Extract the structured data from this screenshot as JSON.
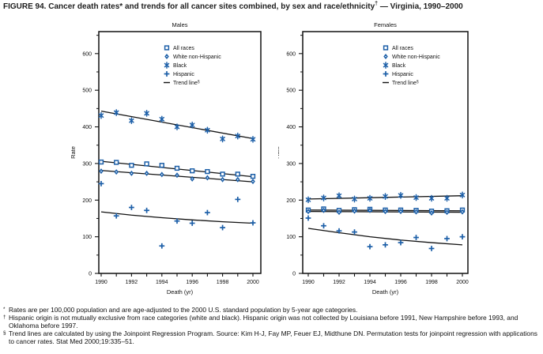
{
  "figure_title": {
    "prefix": "FIGURE 94. Cancer death rates* and trends for all cancer sites combined, by sex and race/ethnicity",
    "superscript": "†",
    "suffix": " — Virginia, 1990–2000"
  },
  "colors": {
    "marker_blue": "#1c5fa8",
    "trend_black": "#111111",
    "axis_black": "#111111"
  },
  "legend": {
    "entries": [
      {
        "label": "All races",
        "marker": "square"
      },
      {
        "label": "White non-Hispanic",
        "marker": "diamond"
      },
      {
        "label": "Black",
        "marker": "asterisk"
      },
      {
        "label": "Hispanic",
        "marker": "plus"
      },
      {
        "label": "Trend line",
        "marker": "dash",
        "superscript": "§"
      }
    ]
  },
  "chart_data": [
    {
      "type": "scatter",
      "title": "Males",
      "xlabel": "Death (yr)",
      "ylabel": "Rate",
      "x": [
        1990,
        1991,
        1992,
        1993,
        1994,
        1995,
        1996,
        1997,
        1998,
        1999,
        2000
      ],
      "xtick_labels": [
        1990,
        1992,
        1994,
        1996,
        1998,
        2000
      ],
      "ylim": [
        0,
        660
      ],
      "yticks": [
        0,
        100,
        200,
        300,
        400,
        500,
        600
      ],
      "grid": false,
      "legend_position": "top-center-inside",
      "series": [
        {
          "name": "All races",
          "marker": "square",
          "values": [
            304,
            303,
            295,
            299,
            295,
            287,
            280,
            278,
            271,
            271,
            265
          ]
        },
        {
          "name": "White non-Hispanic",
          "marker": "diamond",
          "values": [
            279,
            277,
            273,
            273,
            270,
            268,
            258,
            261,
            256,
            256,
            251
          ]
        },
        {
          "name": "Black",
          "marker": "asterisk",
          "values": [
            431,
            439,
            417,
            437,
            421,
            400,
            405,
            391,
            367,
            375,
            366
          ]
        },
        {
          "name": "Hispanic",
          "marker": "plus",
          "values": [
            245,
            157,
            180,
            172,
            75,
            143,
            137,
            166,
            125,
            202,
            138
          ]
        }
      ],
      "trend_lines": [
        {
          "name": "Black trend",
          "points": [
            [
              1990,
              443
            ],
            [
              2000,
              368
            ]
          ]
        },
        {
          "name": "All races trend",
          "points": [
            [
              1990,
              306
            ],
            [
              2000,
              264
            ]
          ]
        },
        {
          "name": "White non-Hispanic trend",
          "points": [
            [
              1990,
              281
            ],
            [
              2000,
              250
            ]
          ]
        },
        {
          "name": "Hispanic trend",
          "points": [
            [
              1990,
              168
            ],
            [
              1992,
              159
            ],
            [
              1994,
              152
            ],
            [
              1996,
              146
            ],
            [
              1998,
              141
            ],
            [
              2000,
              137
            ]
          ]
        }
      ]
    },
    {
      "type": "scatter",
      "title": "Females",
      "xlabel": "Death (yr)",
      "ylabel": "Rate",
      "x": [
        1990,
        1991,
        1992,
        1993,
        1994,
        1995,
        1996,
        1997,
        1998,
        1999,
        2000
      ],
      "xtick_labels": [
        1990,
        1992,
        1994,
        1996,
        1998,
        2000
      ],
      "ylim": [
        0,
        660
      ],
      "yticks": [
        0,
        100,
        200,
        300,
        400,
        500,
        600
      ],
      "grid": false,
      "legend_position": "top-center-inside",
      "series": [
        {
          "name": "All races",
          "marker": "square",
          "values": [
            173,
            176,
            172,
            174,
            175,
            173,
            173,
            172,
            170,
            171,
            173
          ]
        },
        {
          "name": "White non-Hispanic",
          "marker": "diamond",
          "values": [
            169,
            172,
            167,
            170,
            172,
            169,
            169,
            168,
            165,
            167,
            168
          ]
        },
        {
          "name": "Black",
          "marker": "asterisk",
          "values": [
            201,
            206,
            212,
            203,
            205,
            210,
            213,
            207,
            205,
            205,
            214
          ]
        },
        {
          "name": "Hispanic",
          "marker": "plus",
          "values": [
            151,
            130,
            116,
            113,
            73,
            78,
            84,
            98,
            68,
            95,
            100
          ]
        }
      ],
      "trend_lines": [
        {
          "name": "Black trend",
          "points": [
            [
              1990,
              203
            ],
            [
              2000,
              212
            ]
          ]
        },
        {
          "name": "All races trend",
          "points": [
            [
              1990,
              173
            ],
            [
              2000,
              171
            ]
          ]
        },
        {
          "name": "White non-Hispanic trend",
          "points": [
            [
              1990,
              169
            ],
            [
              2000,
              167
            ]
          ]
        },
        {
          "name": "Hispanic trend",
          "points": [
            [
              1990,
              123
            ],
            [
              1992,
              111
            ],
            [
              1994,
              100
            ],
            [
              1996,
              91
            ],
            [
              1998,
              84
            ],
            [
              2000,
              78
            ]
          ]
        }
      ]
    }
  ],
  "footnotes": [
    {
      "marker": "*",
      "text": "Rates are per 100,000 population and are age-adjusted to the 2000 U.S. standard population by 5-year age categories."
    },
    {
      "marker": "†",
      "text": "Hispanic origin is not mutually exclusive from race categories (white and black). Hispanic origin was not collected by Louisiana before 1991, New Hampshire before 1993, and Oklahoma before 1997."
    },
    {
      "marker": "§",
      "text": "Trend lines are calculated by using the Joinpoint Regression Program. Source: Kim H-J, Fay MP, Feuer EJ, Midthune DN. Permutation tests for joinpoint regression with applications to cancer rates. Stat Med 2000;19:335–51."
    }
  ]
}
